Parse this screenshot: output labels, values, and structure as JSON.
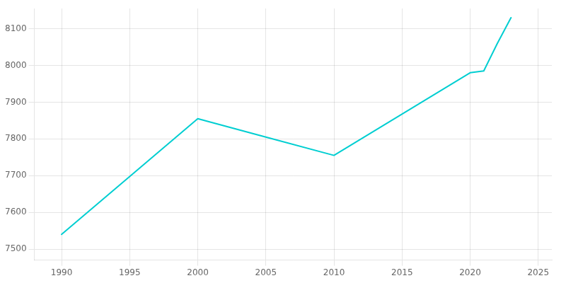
{
  "chart_data": {
    "type": "line",
    "x": [
      1990,
      2000,
      2005,
      2010,
      2020,
      2021,
      2022,
      2023
    ],
    "values": [
      7540,
      7855,
      7805,
      7755,
      7980,
      7985,
      8060,
      8130
    ],
    "color": "#00CED1",
    "xlim": [
      1988,
      2026
    ],
    "ylim": [
      7470,
      8155
    ],
    "xticks": [
      1990,
      1995,
      2000,
      2005,
      2010,
      2015,
      2020,
      2025
    ],
    "yticks": [
      7500,
      7600,
      7700,
      7800,
      7900,
      8000,
      8100
    ],
    "grid": true
  }
}
